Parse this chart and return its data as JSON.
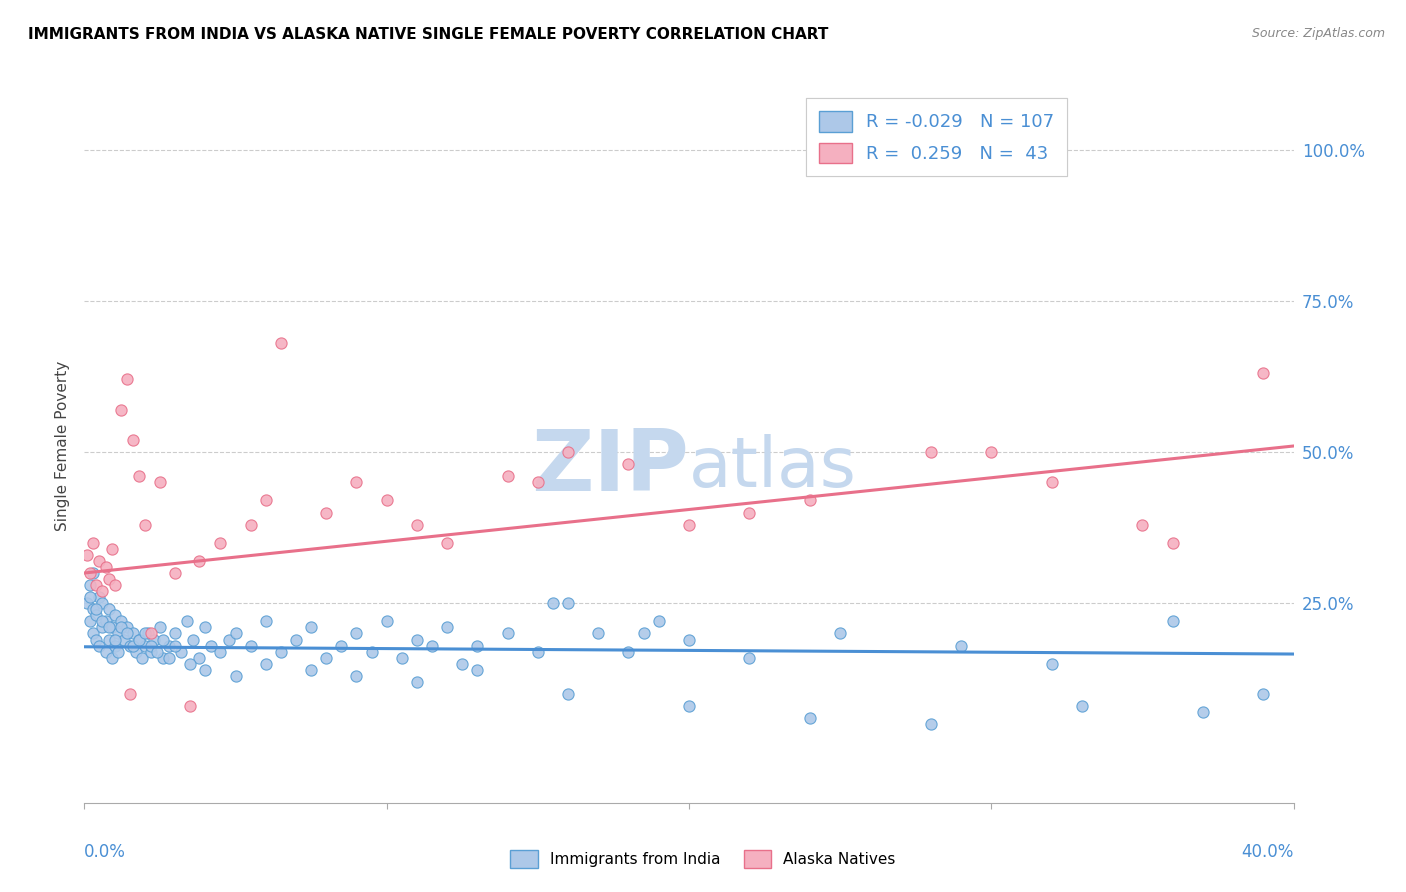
{
  "title": "IMMIGRANTS FROM INDIA VS ALASKA NATIVE SINGLE FEMALE POVERTY CORRELATION CHART",
  "source": "Source: ZipAtlas.com",
  "ylabel": "Single Female Poverty",
  "ytick_labels": [
    "100.0%",
    "75.0%",
    "50.0%",
    "25.0%"
  ],
  "ytick_values": [
    1.0,
    0.75,
    0.5,
    0.25
  ],
  "xlim": [
    0.0,
    0.4
  ],
  "ylim": [
    -0.08,
    1.1
  ],
  "legend_blue_label": "Immigrants from India",
  "legend_pink_label": "Alaska Natives",
  "r_blue": "-0.029",
  "n_blue": "107",
  "r_pink": "0.259",
  "n_pink": "43",
  "blue_color": "#adc8e8",
  "pink_color": "#f5b0c0",
  "blue_edge_color": "#5a9fd4",
  "pink_edge_color": "#e8708a",
  "blue_line_color": "#4a8fd4",
  "pink_line_color": "#e8708a",
  "grid_color": "#cccccc",
  "watermark_zip_color": "#c5d8ee",
  "watermark_atlas_color": "#c5d8ee",
  "blue_trend_x": [
    0.0,
    0.4
  ],
  "blue_trend_y": [
    0.178,
    0.166
  ],
  "pink_trend_x": [
    0.0,
    0.4
  ],
  "pink_trend_y": [
    0.3,
    0.51
  ],
  "blue_scatter_x": [
    0.001,
    0.002,
    0.002,
    0.003,
    0.003,
    0.003,
    0.004,
    0.004,
    0.005,
    0.005,
    0.006,
    0.006,
    0.007,
    0.007,
    0.008,
    0.008,
    0.009,
    0.009,
    0.01,
    0.01,
    0.011,
    0.011,
    0.012,
    0.013,
    0.014,
    0.015,
    0.016,
    0.017,
    0.018,
    0.019,
    0.02,
    0.021,
    0.022,
    0.023,
    0.025,
    0.026,
    0.028,
    0.03,
    0.032,
    0.034,
    0.036,
    0.038,
    0.04,
    0.042,
    0.045,
    0.048,
    0.05,
    0.055,
    0.06,
    0.065,
    0.07,
    0.075,
    0.08,
    0.085,
    0.09,
    0.095,
    0.1,
    0.105,
    0.11,
    0.115,
    0.12,
    0.125,
    0.13,
    0.14,
    0.15,
    0.16,
    0.17,
    0.18,
    0.19,
    0.2,
    0.002,
    0.004,
    0.006,
    0.008,
    0.01,
    0.012,
    0.014,
    0.016,
    0.018,
    0.02,
    0.022,
    0.024,
    0.026,
    0.028,
    0.03,
    0.035,
    0.04,
    0.05,
    0.06,
    0.075,
    0.09,
    0.11,
    0.13,
    0.16,
    0.2,
    0.24,
    0.28,
    0.32,
    0.36,
    0.39,
    0.25,
    0.29,
    0.33,
    0.37,
    0.155,
    0.185,
    0.22
  ],
  "blue_scatter_y": [
    0.25,
    0.22,
    0.28,
    0.2,
    0.24,
    0.3,
    0.19,
    0.23,
    0.18,
    0.26,
    0.21,
    0.25,
    0.17,
    0.22,
    0.19,
    0.24,
    0.16,
    0.21,
    0.18,
    0.23,
    0.2,
    0.17,
    0.22,
    0.19,
    0.21,
    0.18,
    0.2,
    0.17,
    0.19,
    0.16,
    0.18,
    0.2,
    0.17,
    0.19,
    0.21,
    0.16,
    0.18,
    0.2,
    0.17,
    0.22,
    0.19,
    0.16,
    0.21,
    0.18,
    0.17,
    0.19,
    0.2,
    0.18,
    0.22,
    0.17,
    0.19,
    0.21,
    0.16,
    0.18,
    0.2,
    0.17,
    0.22,
    0.16,
    0.19,
    0.18,
    0.21,
    0.15,
    0.18,
    0.2,
    0.17,
    0.25,
    0.2,
    0.17,
    0.22,
    0.19,
    0.26,
    0.24,
    0.22,
    0.21,
    0.19,
    0.21,
    0.2,
    0.18,
    0.19,
    0.2,
    0.18,
    0.17,
    0.19,
    0.16,
    0.18,
    0.15,
    0.14,
    0.13,
    0.15,
    0.14,
    0.13,
    0.12,
    0.14,
    0.1,
    0.08,
    0.06,
    0.05,
    0.15,
    0.22,
    0.1,
    0.2,
    0.18,
    0.08,
    0.07,
    0.25,
    0.2,
    0.16
  ],
  "pink_scatter_x": [
    0.001,
    0.002,
    0.003,
    0.004,
    0.005,
    0.006,
    0.007,
    0.008,
    0.009,
    0.01,
    0.012,
    0.014,
    0.016,
    0.018,
    0.02,
    0.025,
    0.03,
    0.038,
    0.045,
    0.055,
    0.065,
    0.08,
    0.1,
    0.12,
    0.15,
    0.18,
    0.22,
    0.28,
    0.35,
    0.39,
    0.06,
    0.09,
    0.11,
    0.14,
    0.16,
    0.2,
    0.24,
    0.3,
    0.32,
    0.36,
    0.015,
    0.022,
    0.035
  ],
  "pink_scatter_y": [
    0.33,
    0.3,
    0.35,
    0.28,
    0.32,
    0.27,
    0.31,
    0.29,
    0.34,
    0.28,
    0.57,
    0.62,
    0.52,
    0.46,
    0.38,
    0.45,
    0.3,
    0.32,
    0.35,
    0.38,
    0.68,
    0.4,
    0.42,
    0.35,
    0.45,
    0.48,
    0.4,
    0.5,
    0.38,
    0.63,
    0.42,
    0.45,
    0.38,
    0.46,
    0.5,
    0.38,
    0.42,
    0.5,
    0.45,
    0.35,
    0.1,
    0.2,
    0.08
  ]
}
